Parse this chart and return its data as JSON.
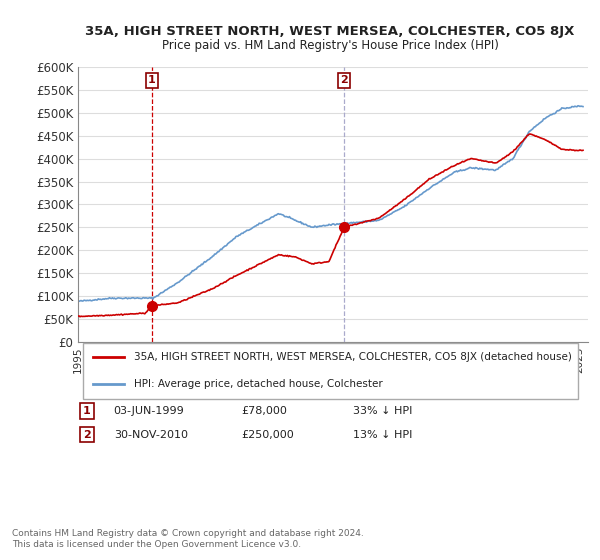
{
  "title": "35A, HIGH STREET NORTH, WEST MERSEA, COLCHESTER, CO5 8JX",
  "subtitle": "Price paid vs. HM Land Registry's House Price Index (HPI)",
  "ylabel_ticks": [
    "£0",
    "£50K",
    "£100K",
    "£150K",
    "£200K",
    "£250K",
    "£300K",
    "£350K",
    "£400K",
    "£450K",
    "£500K",
    "£550K",
    "£600K"
  ],
  "ytick_values": [
    0,
    50000,
    100000,
    150000,
    200000,
    250000,
    300000,
    350000,
    400000,
    450000,
    500000,
    550000,
    600000
  ],
  "xmin": 1995.0,
  "xmax": 2025.5,
  "ymin": 0,
  "ymax": 600000,
  "transaction1": {
    "date_x": 1999.42,
    "price": 78000,
    "label": "1"
  },
  "transaction2": {
    "date_x": 2010.92,
    "price": 250000,
    "label": "2"
  },
  "legend_entry1": "35A, HIGH STREET NORTH, WEST MERSEA, COLCHESTER, CO5 8JX (detached house)",
  "legend_entry2": "HPI: Average price, detached house, Colchester",
  "footnote1": "1   03-JUN-1999          £78,000          33% ↓ HPI",
  "footnote2": "2   30-NOV-2010          £250,000        13% ↓ HPI",
  "copyright": "Contains HM Land Registry data © Crown copyright and database right 2024.\nThis data is licensed under the Open Government Licence v3.0.",
  "line_color_red": "#cc0000",
  "line_color_blue": "#6699cc",
  "vline_color": "#cc0000",
  "vline2_color": "#6699cc",
  "background_color": "#ffffff",
  "grid_color": "#dddddd"
}
